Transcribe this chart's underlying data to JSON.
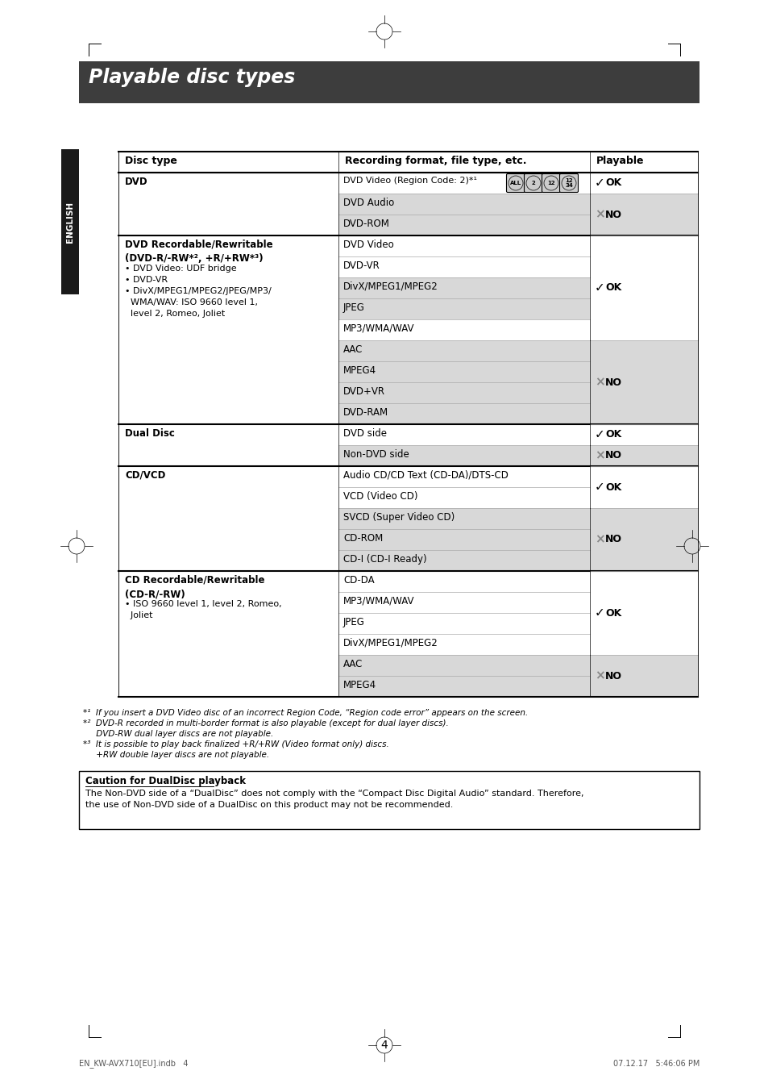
{
  "title": "Playable disc types",
  "title_bg": "#3d3d3d",
  "title_color": "#ffffff",
  "header_cols": [
    "Disc type",
    "Recording format, file type, etc.",
    "Playable"
  ],
  "page_bg": "#ffffff",
  "gray_bg": "#d8d8d8",
  "white_bg": "#ffffff",
  "english_tab_bg": "#1a1a1a",
  "footnotes": [
    "*¹  If you insert a DVD Video disc of an incorrect Region Code, “Region code error” appears on the screen.",
    "*²  DVD-R recorded in multi-border format is also playable (except for dual layer discs).",
    "     DVD-RW dual layer discs are not playable.",
    "*³  It is possible to play back finalized +R/+RW (Video format only) discs.",
    "     +RW double layer discs are not playable."
  ],
  "caution_title": "Caution for DualDisc playback",
  "caution_text": "The Non-DVD side of a “DualDisc” does not comply with the “Compact Disc Digital Audio” standard. Therefore,\nthe use of Non-DVD side of a DualDisc on this product may not be recommended.",
  "page_number": "4",
  "bottom_left": "EN_KW-AVX710[EU].indb   4",
  "bottom_right": "07.12.17   5:46:06 PM"
}
